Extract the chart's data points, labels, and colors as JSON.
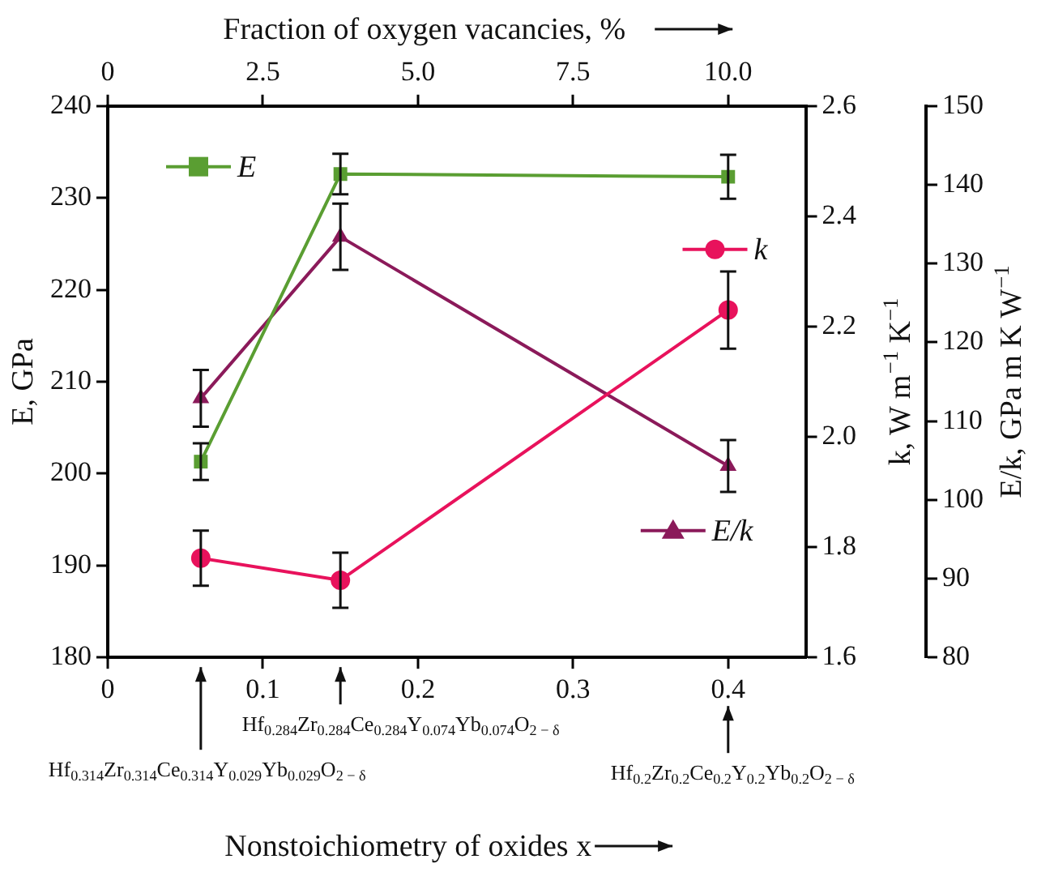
{
  "chart_data": {
    "type": "line",
    "xlabel": "Nonstoichiometry of oxides x",
    "x2label": "Fraction of oxygen vacancies, %",
    "ylabel": "E, GPa",
    "y2label": "k, W m$^{−1}$ K$^{−1}$",
    "y3label": "E/k, GPa m K W$^{−1}$",
    "xlim": [
      0,
      0.45
    ],
    "xticks": [
      0,
      0.1,
      0.2,
      0.3,
      0.4
    ],
    "x2lim": [
      0,
      11.25
    ],
    "x2ticks": [
      0,
      2.5,
      {
        "value": 5,
        "label": "5.0"
      },
      7.5,
      {
        "value": 10,
        "label": "10.0"
      }
    ],
    "ylim": [
      180,
      240
    ],
    "yticks": [
      180,
      190,
      200,
      210,
      220,
      230,
      240
    ],
    "y2lim": [
      1.6,
      2.6
    ],
    "y2ticks": [
      1.6,
      1.8,
      {
        "value": 2,
        "label": "2.0"
      },
      2.2,
      2.4,
      2.6
    ],
    "y3lim": [
      80,
      150
    ],
    "y3ticks": [
      80,
      90,
      100,
      110,
      120,
      130,
      140,
      150
    ],
    "x": [
      0.06,
      0.15,
      0.4
    ],
    "series": [
      {
        "name": "E",
        "color": "#5a9e32",
        "marker": "square",
        "values": [
          201.3,
          232.6,
          232.3
        ],
        "errors": [
          2,
          2.2,
          2.4
        ]
      },
      {
        "name": "k",
        "color": "#e8125c",
        "marker": "circle",
        "axis": "y2",
        "values": [
          1.78,
          1.74,
          2.23
        ],
        "errors": [
          0.05,
          0.05,
          0.07
        ]
      },
      {
        "name": "E/k",
        "color": "#8b1a5a",
        "marker": "triangle",
        "axis": "y3",
        "values": [
          112.9,
          133.4,
          104.3
        ],
        "errors": [
          3.6,
          4.2,
          3.3
        ]
      }
    ],
    "legend": "top right",
    "grid": false,
    "line_style": "solid",
    "annotations": [
      "Hf$_{0.314}$Zr$_{0.314}$Ce$_{0.314}$Y$_{0.029}$Yb$_{0.029}$O$_{2 − δ}$",
      "Hf$_{0.284}$Zr$_{0.284}$Ce$_{0.284}$Y$_{0.074}$Yb$_{0.074}$O$_{2 − δ}$",
      "Hf$_{0.2}$Zr$_{0.2}$Ce$_{0.2}$Y$_{0.2}$Yb$_{0.2}$O$_{2 − δ}$"
    ]
  }
}
